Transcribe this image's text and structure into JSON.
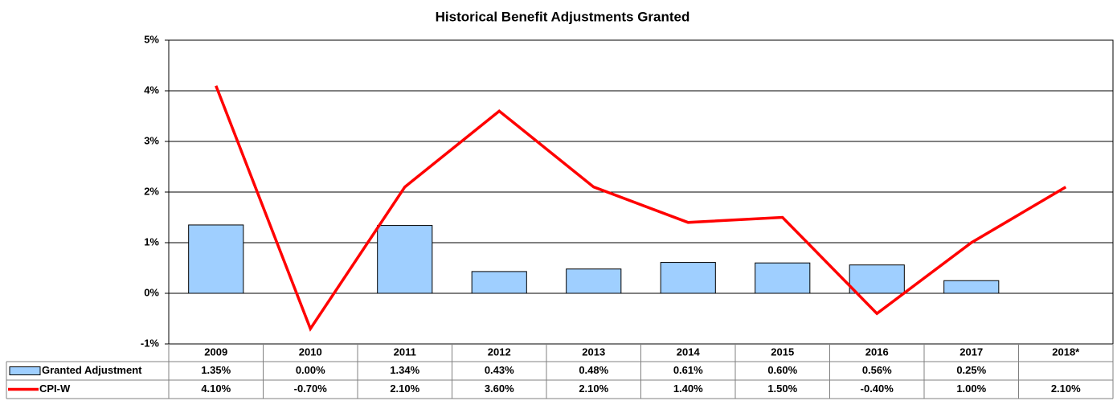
{
  "chart_data": {
    "type": "bar_line_table",
    "title": "Historical  Benefit  Adjustments  Granted",
    "categories": [
      "2009",
      "2010",
      "2011",
      "2012",
      "2013",
      "2014",
      "2015",
      "2016",
      "2017",
      "2018*"
    ],
    "series": [
      {
        "name": "Granted Adjustment",
        "type": "bar",
        "color": "#9fcfff",
        "values": [
          1.35,
          0.0,
          1.34,
          0.43,
          0.48,
          0.61,
          0.6,
          0.56,
          0.25,
          null
        ],
        "value_labels": [
          "1.35%",
          "0.00%",
          "1.34%",
          "0.43%",
          "0.48%",
          "0.61%",
          "0.60%",
          "0.56%",
          "0.25%",
          null
        ]
      },
      {
        "name": "CPI-W",
        "type": "line",
        "color": "#ff0000",
        "values": [
          4.1,
          -0.7,
          2.1,
          3.6,
          2.1,
          1.4,
          1.5,
          -0.4,
          1.0,
          2.1
        ],
        "value_labels": [
          "4.10%",
          "-0.70%",
          "2.10%",
          "3.60%",
          "2.10%",
          "1.40%",
          "1.50%",
          "-0.40%",
          "1.00%",
          "2.10%"
        ]
      }
    ],
    "ylim": [
      -1,
      5
    ],
    "yticks": [
      {
        "value": -1,
        "label": "-1%"
      },
      {
        "value": 0,
        "label": "0%"
      },
      {
        "value": 1,
        "label": "1%"
      },
      {
        "value": 2,
        "label": "2%"
      },
      {
        "value": 3,
        "label": "3%"
      },
      {
        "value": 4,
        "label": "4%"
      },
      {
        "value": 5,
        "label": "5%"
      }
    ],
    "grid": true
  }
}
